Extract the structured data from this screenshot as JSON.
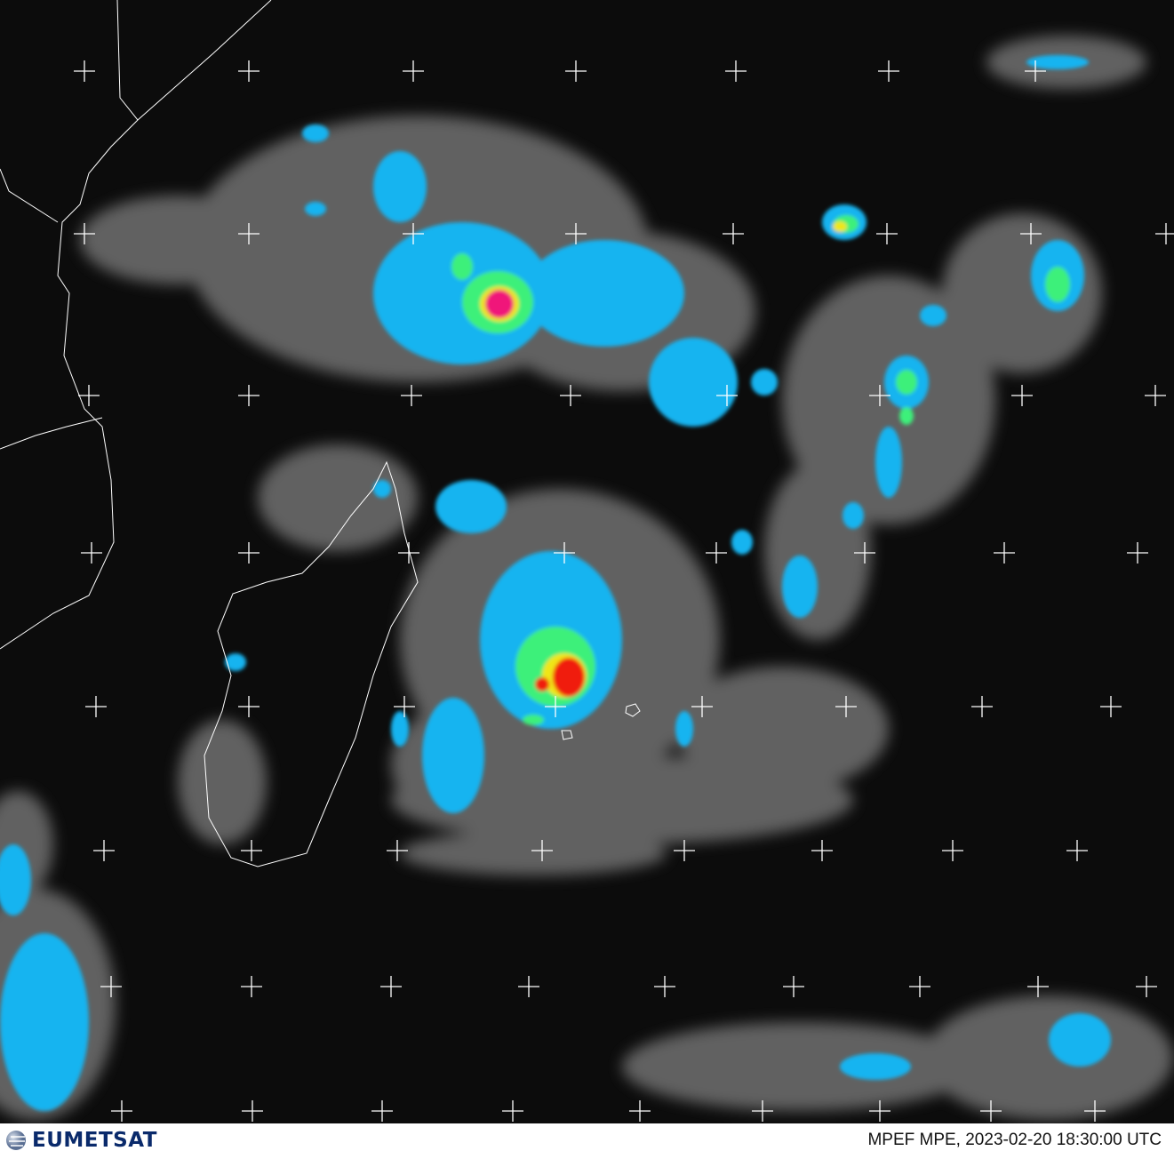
{
  "image": {
    "type": "satellite precipitation estimate overlay on infrared imagery",
    "region": "South-west Indian Ocean, Madagascar",
    "colors": {
      "background": "#0c0c0c",
      "cloud": "#8a8a8a",
      "light_precip": "#19b4f0",
      "moderate_precip": "#3cf07a",
      "heavy_precip": "#f0e614",
      "very_heavy_precip": "#f01e0a",
      "extreme_precip": "#f0147a",
      "coastline": "#ffffff",
      "grid": "#ffffff"
    }
  },
  "footer": {
    "logo_text": "EUMETSAT",
    "logo_color": "#0a2a6b",
    "timestamp": "MPEF MPE, 2023-02-20 18:30:00 UTC"
  }
}
